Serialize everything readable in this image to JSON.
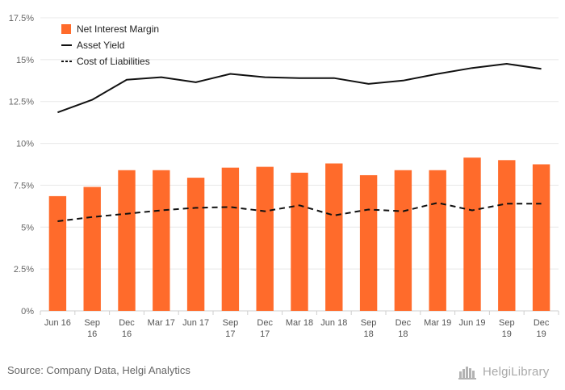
{
  "chart_data": {
    "type": "bar",
    "categories": [
      "Jun 16",
      "Sep 16",
      "Dec 16",
      "Mar 17",
      "Jun 17",
      "Sep 17",
      "Dec 17",
      "Mar 18",
      "Jun 18",
      "Sep 18",
      "Dec 18",
      "Mar 19",
      "Jun 19",
      "Sep 19",
      "Dec 19"
    ],
    "category_labels": [
      [
        "Jun 16"
      ],
      [
        "Sep",
        "16"
      ],
      [
        "Dec",
        "16"
      ],
      [
        "Mar 17"
      ],
      [
        "Jun 17"
      ],
      [
        "Sep",
        "17"
      ],
      [
        "Dec",
        "17"
      ],
      [
        "Mar 18"
      ],
      [
        "Jun 18"
      ],
      [
        "Sep",
        "18"
      ],
      [
        "Dec",
        "18"
      ],
      [
        "Mar 19"
      ],
      [
        "Jun 19"
      ],
      [
        "Sep",
        "19"
      ],
      [
        "Dec",
        "19"
      ]
    ],
    "series": [
      {
        "name": "Net Interest Margin",
        "type": "bar",
        "color": "#ff6b2b",
        "values": [
          6.85,
          7.4,
          8.4,
          8.4,
          7.95,
          8.55,
          8.6,
          8.25,
          8.8,
          8.1,
          8.4,
          8.4,
          9.15,
          9.0,
          8.75
        ]
      },
      {
        "name": "Asset Yield",
        "type": "line",
        "style": "solid",
        "color": "#111111",
        "values": [
          11.85,
          12.6,
          13.8,
          13.95,
          13.65,
          14.15,
          13.95,
          13.9,
          13.9,
          13.55,
          13.75,
          14.15,
          14.5,
          14.75,
          14.45
        ]
      },
      {
        "name": "Cost of Liabilities",
        "type": "line",
        "style": "dashed",
        "color": "#111111",
        "values": [
          5.35,
          5.6,
          5.8,
          6.0,
          6.15,
          6.2,
          5.95,
          6.3,
          5.7,
          6.05,
          5.95,
          6.45,
          6.0,
          6.4,
          6.4
        ]
      }
    ],
    "yticks": [
      "0%",
      "2.5%",
      "5%",
      "7.5%",
      "10%",
      "12.5%",
      "15%",
      "17.5%"
    ],
    "ylim": [
      0,
      17.5
    ],
    "grid": true,
    "legend_position": "top-left"
  },
  "footer": {
    "source": "Source: Company Data, Helgi Analytics",
    "brand": "HelgiLibrary"
  }
}
